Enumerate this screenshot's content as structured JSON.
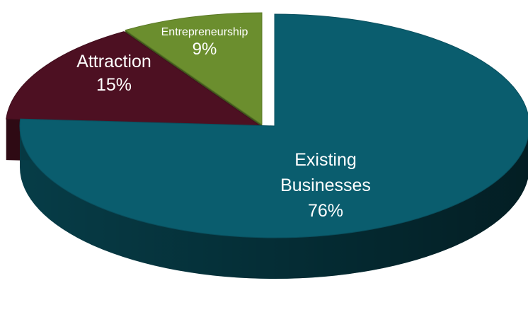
{
  "chart_data": {
    "type": "pie",
    "style": "3d-exploded",
    "slices": [
      {
        "label_lines": [
          "Existing",
          "Businesses"
        ],
        "percent_label": "76%",
        "value": 76,
        "color": "#0a5d6e",
        "text_color": "#ffffff"
      },
      {
        "label_lines": [
          "Attraction"
        ],
        "percent_label": "15%",
        "value": 15,
        "color": "#4d1022",
        "text_color": "#ffffff"
      },
      {
        "label_lines": [
          "Entrepreneurship"
        ],
        "percent_label": "9%",
        "value": 9,
        "color": "#6b8e2e",
        "text_color": "#ffffff"
      }
    ]
  }
}
